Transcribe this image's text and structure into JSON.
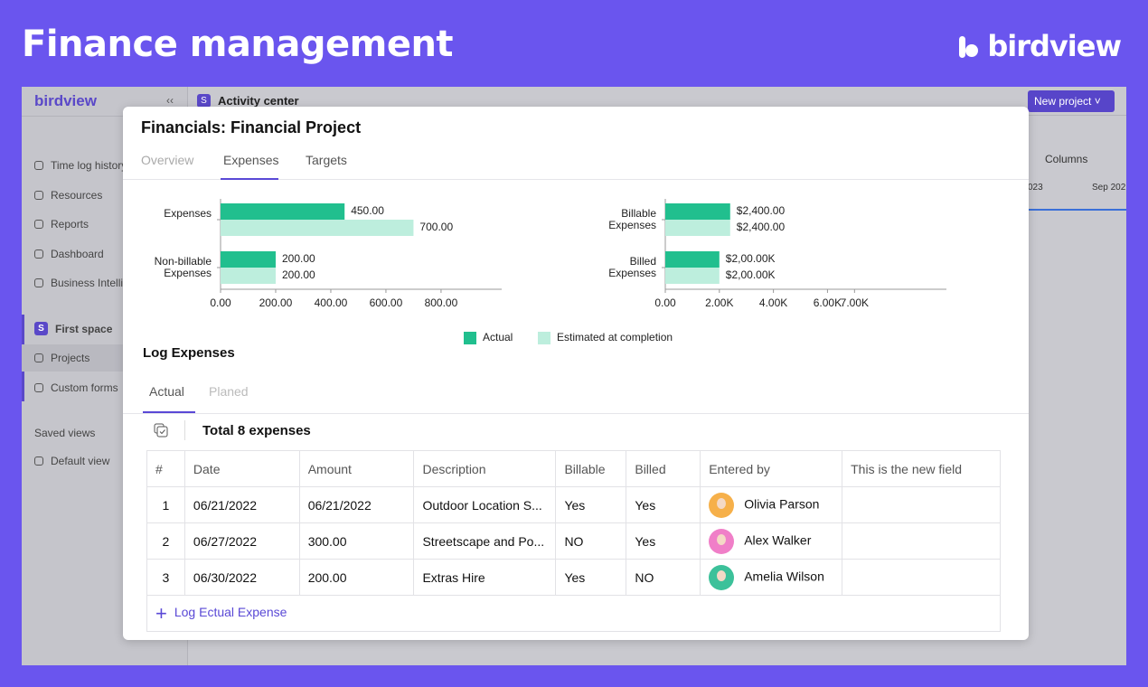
{
  "header": {
    "title": "Finance management",
    "logo": "birdview"
  },
  "app": {
    "logo": "birdview",
    "space_badge": "S",
    "breadcrumb": "Activity center",
    "new_project": "New project",
    "sidebar": [
      "Time log history",
      "Resources",
      "Reports",
      "Dashboard",
      "Business Intellig"
    ],
    "space": {
      "badge": "S",
      "name": "First space"
    },
    "space_items": [
      "Projects",
      "Custom forms"
    ],
    "saved_views": "Saved views",
    "default_view": "Default view",
    "columns": "Columns",
    "timeline": [
      "023",
      "Sep 202"
    ]
  },
  "modal": {
    "title": "Financials: Financial Project",
    "tabs": [
      "Overview",
      "Expenses",
      "Targets"
    ],
    "log_title": "Log Expenses",
    "log_tabs": [
      "Actual",
      "Planed"
    ],
    "total": "Total 8 expenses",
    "table": {
      "headers": [
        "#",
        "Date",
        "Amount",
        "Description",
        "Billable",
        "Billed",
        "Entered by",
        "This is the new field"
      ],
      "rows": [
        [
          1,
          "06/21/2022",
          "06/21/2022",
          "Outdoor Location S...",
          "Yes",
          "Yes",
          "Olivia Parson"
        ],
        [
          2,
          "06/27/2022",
          "300.00",
          "Streetscape and Po...",
          "NO",
          "Yes",
          "Alex Walker"
        ],
        [
          3,
          "06/30/2022",
          "200.00",
          "Extras Hire",
          "Yes",
          "NO",
          "Amelia Wilson"
        ]
      ]
    },
    "add": "Log Ectual Expense"
  },
  "chart_data": [
    {
      "type": "bar",
      "orientation": "horizontal",
      "categories": [
        "Expenses",
        "Non-billable Expenses"
      ],
      "series": [
        {
          "name": "Actual",
          "color": "#21bf8e",
          "values": [
            450,
            200
          ],
          "value_labels": [
            "450.00",
            "200.00"
          ]
        },
        {
          "name": "Estimated at completion",
          "color": "#bdeedd",
          "values": [
            700,
            200
          ],
          "value_labels": [
            "700.00",
            "200.00"
          ]
        }
      ],
      "xlim": [
        0,
        1020
      ],
      "xticks": [
        {
          "value": 0,
          "label": "0.00"
        },
        {
          "value": 200,
          "label": "200.00"
        },
        {
          "value": 400,
          "label": "400.00"
        },
        {
          "value": 600,
          "label": "600.00"
        },
        {
          "value": 800,
          "label": "800.00"
        }
      ]
    },
    {
      "type": "bar",
      "orientation": "horizontal",
      "categories": [
        "Billable Expenses",
        "Billed Expenses"
      ],
      "series": [
        {
          "color": "#21bf8e",
          "values": [
            2400,
            2000
          ],
          "value_labels": [
            "$2,400.00",
            "$2,00.00K"
          ]
        },
        {
          "color": "#bdeedd",
          "values": [
            2400,
            2000
          ],
          "value_labels": [
            "$2,400.00",
            "$2,00.00K"
          ]
        }
      ],
      "xlim": [
        0,
        10400
      ],
      "xticks": [
        {
          "value": 0,
          "label": "0.00"
        },
        {
          "value": 2000,
          "label": "2.00K"
        },
        {
          "value": 4000,
          "label": "4.00K"
        },
        {
          "value": 6000,
          "label": "6.00K"
        },
        {
          "value": 7000,
          "label": "7.00K"
        }
      ]
    }
  ]
}
